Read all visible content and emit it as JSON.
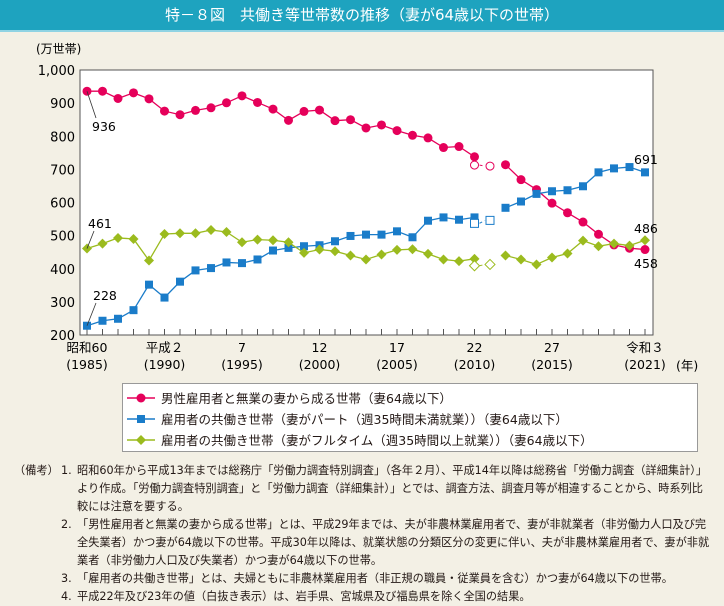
{
  "title": "特－８図　共働き等世帯数の推移（妻が64歳以下の世帯）",
  "chart_data": {
    "type": "line",
    "title": "特－８図　共働き等世帯数の推移（妻が64歳以下の世帯）",
    "ylabel": "(万世帯)",
    "xlabel": "(年)",
    "ylim": [
      200,
      1000
    ],
    "xlim": [
      1985,
      2021
    ],
    "yticks": [
      "200",
      "300",
      "400",
      "500",
      "600",
      "700",
      "800",
      "900",
      "1,000"
    ],
    "ytick_values": [
      200,
      300,
      400,
      500,
      600,
      700,
      800,
      900,
      1000
    ],
    "xticks": [
      {
        "year": 1985,
        "era": "昭和60",
        "ad": "(1985)"
      },
      {
        "year": 1990,
        "era": "平成２",
        "ad": "(1990)"
      },
      {
        "year": 1995,
        "era": "7",
        "ad": "(1995)"
      },
      {
        "year": 2000,
        "era": "12",
        "ad": "(2000)"
      },
      {
        "year": 2005,
        "era": "17",
        "ad": "(2005)"
      },
      {
        "year": 2010,
        "era": "22",
        "ad": "(2010)"
      },
      {
        "year": 2015,
        "era": "27",
        "ad": "(2015)"
      },
      {
        "year": 2021,
        "era": "令和３",
        "ad": "(2021)"
      }
    ],
    "grid": false,
    "legend_placement": "bottom",
    "x": [
      1985,
      1986,
      1987,
      1988,
      1989,
      1990,
      1991,
      1992,
      1993,
      1994,
      1995,
      1996,
      1997,
      1998,
      1999,
      2000,
      2001,
      2002,
      2003,
      2004,
      2005,
      2006,
      2007,
      2008,
      2009,
      2010,
      2011,
      2012,
      2013,
      2014,
      2015,
      2016,
      2017,
      2018,
      2019,
      2020,
      2021
    ],
    "series": [
      {
        "name": "男性雇用者と無業の妻から成る世帯（妻64歳以下）",
        "color": "#e5005a",
        "marker": "circle",
        "values": [
          936,
          936,
          914,
          931,
          913,
          876,
          865,
          878,
          886,
          901,
          922,
          902,
          882,
          848,
          875,
          879,
          847,
          850,
          825,
          834,
          817,
          803,
          795,
          766,
          769,
          738,
          null,
          714,
          669,
          639,
          598,
          569,
          541,
          504,
          472,
          462,
          458
        ],
        "hollow": {
          "x": [
            2010,
            2011
          ],
          "values": [
            713,
            710
          ]
        },
        "labels": [
          {
            "year": 1985,
            "text": "936"
          },
          {
            "year": 2021,
            "text": "458"
          }
        ]
      },
      {
        "name": "雇用者の共働き世帯（妻がパート（週35時間未満就業））（妻64歳以下）",
        "color": "#1a7cc9",
        "marker": "square",
        "values": [
          228,
          243,
          249,
          275,
          352,
          313,
          361,
          395,
          402,
          419,
          417,
          428,
          455,
          463,
          468,
          471,
          483,
          499,
          503,
          503,
          513,
          495,
          545,
          555,
          548,
          555,
          null,
          584,
          603,
          626,
          634,
          637,
          649,
          691,
          703,
          707,
          691
        ],
        "hollow": {
          "x": [
            2010,
            2011
          ],
          "values": [
            537,
            546
          ]
        },
        "labels": [
          {
            "year": 1985,
            "text": "228"
          },
          {
            "year": 2021,
            "text": "691"
          }
        ]
      },
      {
        "name": "雇用者の共働き世帯（妻がフルタイム（週35時間以上就業））（妻64歳以下）",
        "color": "#9bbb1e",
        "marker": "diamond",
        "values": [
          461,
          476,
          493,
          490,
          425,
          505,
          507,
          507,
          517,
          511,
          480,
          488,
          486,
          480,
          448,
          458,
          453,
          440,
          428,
          443,
          457,
          459,
          445,
          428,
          423,
          430,
          null,
          440,
          428,
          413,
          434,
          446,
          485,
          468,
          476,
          470,
          486
        ],
        "hollow": {
          "x": [
            2010,
            2011
          ],
          "values": [
            409,
            413
          ]
        },
        "labels": [
          {
            "year": 1985,
            "text": "461"
          },
          {
            "year": 2021,
            "text": "486"
          }
        ]
      }
    ]
  },
  "notes": {
    "head": "（備考）",
    "items": [
      {
        "num": "1.",
        "text": "昭和60年から平成13年までは総務庁「労働力調査特別調査」（各年２月）、平成14年以降は総務省「労働力調査（詳細集計）」より作成。「労働力調査特別調査」と「労働力調査（詳細集計）」とでは、調査方法、調査月等が相違することから、時系列比較には注意を要する。"
      },
      {
        "num": "2.",
        "text": "「男性雇用者と無業の妻から成る世帯」とは、平成29年までは、夫が非農林業雇用者で、妻が非就業者（非労働力人口及び完全失業者）かつ妻が64歳以下の世帯。平成30年以降は、就業状態の分類区分の変更に伴い、夫が非農林業雇用者で、妻が非就業者（非労働力人口及び失業者）かつ妻が64歳以下の世帯。"
      },
      {
        "num": "3.",
        "text": "「雇用者の共働き世帯」とは、夫婦ともに非農林業雇用者（非正規の職員・従業員を含む）かつ妻が64歳以下の世帯。"
      },
      {
        "num": "4.",
        "text": "平成22年及び23年の値（白抜き表示）は、岩手県、宮城県及び福島県を除く全国の結果。"
      }
    ]
  }
}
